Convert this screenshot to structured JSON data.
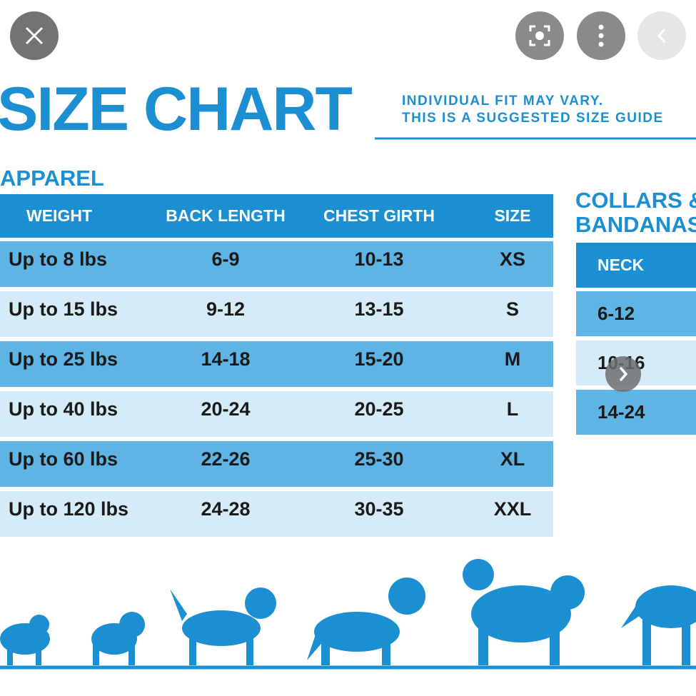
{
  "chart": {
    "title": "SIZE CHART",
    "subtitle": [
      "INDIVIDUAL FIT MAY VARY.",
      "THIS IS A SUGGESTED SIZE GUIDE"
    ]
  },
  "apparel": {
    "heading": "APPAREL",
    "header": [
      "WEIGHT",
      "BACK LENGTH",
      "CHEST GIRTH",
      "SIZE"
    ],
    "rows": [
      [
        "Up to 8 lbs",
        "6-9",
        "10-13",
        "XS"
      ],
      [
        "Up to 15 lbs",
        "9-12",
        "13-15",
        "S"
      ],
      [
        "Up to 25 lbs",
        "14-18",
        "15-20",
        "M"
      ],
      [
        "Up to 40 lbs",
        "20-24",
        "20-25",
        "L"
      ],
      [
        "Up to 60 lbs",
        "22-26",
        "25-30",
        "XL"
      ],
      [
        "Up to 120 lbs",
        "24-28",
        "30-35",
        "XXL"
      ]
    ]
  },
  "collars": {
    "heading": [
      "COLLARS &",
      "BANDANAS"
    ],
    "header": "NECK",
    "rows": [
      "6-12",
      "10-16",
      "14-24"
    ]
  }
}
